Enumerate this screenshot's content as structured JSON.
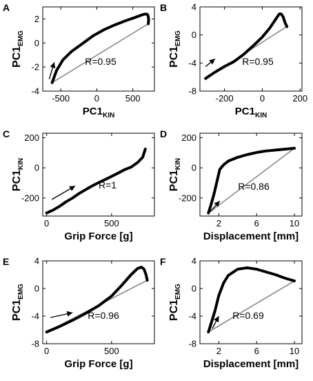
{
  "chart_data": [
    {
      "panel": "A",
      "type": "line",
      "xlabel": "PC1",
      "xlabel_sub": "KIN",
      "ylabel": "PC1",
      "ylabel_sub": "EMG",
      "xlim": [
        -750,
        800
      ],
      "ylim": [
        -4,
        3
      ],
      "xticks": [
        -500,
        0,
        500
      ],
      "xtick_labels": [
        "-500",
        "0",
        "500"
      ],
      "yticks": [
        -4,
        -2,
        0,
        2
      ],
      "ytick_labels": [
        "-4",
        "-2",
        "0",
        "2"
      ],
      "annotation": "R=0.95",
      "curve": {
        "x": [
          -620,
          -560,
          -470,
          -350,
          -200,
          -50,
          100,
          250,
          400,
          520,
          610,
          660,
          700,
          715,
          720,
          715
        ],
        "y": [
          -3.3,
          -2.3,
          -1.4,
          -0.7,
          -0.05,
          0.6,
          1.1,
          1.5,
          1.85,
          2.1,
          2.3,
          2.4,
          2.4,
          2.2,
          1.9,
          1.6
        ]
      },
      "reference_line": {
        "x": [
          -620,
          715
        ],
        "y": [
          -3.3,
          1.6
        ]
      },
      "arrow": {
        "from": [
          -660,
          -3.0
        ],
        "to": [
          -590,
          -1.6
        ]
      }
    },
    {
      "panel": "B",
      "type": "line",
      "xlabel": "PC1",
      "xlabel_sub": "KIN",
      "ylabel": "PC1",
      "ylabel_sub": "EMG",
      "xlim": [
        -330,
        210
      ],
      "ylim": [
        -8,
        4
      ],
      "xticks": [
        -200,
        0,
        200
      ],
      "xtick_labels": [
        "-200",
        "0",
        "200"
      ],
      "yticks": [
        -8,
        -4,
        0,
        4
      ],
      "ytick_labels": [
        "-8",
        "-4",
        "0",
        "4"
      ],
      "annotation": "R=0.95",
      "curve": {
        "x": [
          -300,
          -250,
          -200,
          -150,
          -100,
          -50,
          0,
          40,
          70,
          90,
          100,
          110,
          120,
          130
        ],
        "y": [
          -6.2,
          -5.3,
          -4.5,
          -3.8,
          -2.8,
          -1.6,
          -0.3,
          1.0,
          2.2,
          3.0,
          3.0,
          2.6,
          1.8,
          1.2
        ]
      },
      "reference_line": {
        "x": [
          -300,
          130
        ],
        "y": [
          -6.2,
          1.2
        ]
      },
      "arrow": {
        "from": [
          -300,
          -4.5
        ],
        "to": [
          -250,
          -3.4
        ]
      }
    },
    {
      "panel": "C",
      "type": "line",
      "xlabel": "Grip Force [g]",
      "xlabel_sub": "",
      "ylabel": "PC1",
      "ylabel_sub": "KIN",
      "xlim": [
        -30,
        830
      ],
      "ylim": [
        -320,
        230
      ],
      "xticks": [
        0,
        500
      ],
      "xtick_labels": [
        "0",
        "500"
      ],
      "yticks": [
        -200,
        0,
        200
      ],
      "ytick_labels": [
        "-200",
        "0",
        "200"
      ],
      "annotation": "R=1",
      "curve": {
        "x": [
          0,
          50,
          100,
          150,
          200,
          250,
          300,
          350,
          400,
          450,
          500,
          550,
          600,
          650,
          700,
          740,
          760
        ],
        "y": [
          -300,
          -280,
          -255,
          -225,
          -200,
          -170,
          -145,
          -120,
          -98,
          -78,
          -57,
          -35,
          -12,
          5,
          35,
          70,
          125
        ]
      },
      "reference_line": null,
      "arrow": {
        "from": [
          40,
          -210
        ],
        "to": [
          220,
          -120
        ]
      }
    },
    {
      "panel": "D",
      "type": "line",
      "xlabel": "Displacement [mm]",
      "xlabel_sub": "",
      "ylabel": "PC1",
      "ylabel_sub": "KIN",
      "xlim": [
        0,
        10.8
      ],
      "ylim": [
        -320,
        230
      ],
      "xticks": [
        2,
        6,
        10
      ],
      "xtick_labels": [
        "2",
        "6",
        "10"
      ],
      "yticks": [
        -200,
        0,
        200
      ],
      "ytick_labels": [
        "-200",
        "0",
        "200"
      ],
      "annotation": "R=0.86",
      "curve": {
        "x": [
          0.9,
          1.2,
          1.5,
          1.8,
          2.1,
          2.5,
          3.0,
          4.0,
          5.0,
          6.0,
          7.0,
          8.0,
          9.0,
          10.0
        ],
        "y": [
          -300,
          -240,
          -170,
          -90,
          -10,
          20,
          45,
          70,
          88,
          102,
          112,
          118,
          124,
          130
        ]
      },
      "reference_line": {
        "x": [
          0.9,
          10.0
        ],
        "y": [
          -300,
          130
        ]
      },
      "arrow": {
        "from": [
          1.1,
          -290
        ],
        "to": [
          2.1,
          -220
        ]
      }
    },
    {
      "panel": "E",
      "type": "line",
      "xlabel": "Grip Force [g]",
      "xlabel_sub": "",
      "ylabel": "PC1",
      "ylabel_sub": "EMG",
      "xlim": [
        -30,
        830
      ],
      "ylim": [
        -8,
        4
      ],
      "xticks": [
        0,
        500
      ],
      "xtick_labels": [
        "0",
        "500"
      ],
      "yticks": [
        -8,
        -4,
        0,
        4
      ],
      "ytick_labels": [
        "-8",
        "-4",
        "0",
        "4"
      ],
      "annotation": "R=0.96",
      "curve": {
        "x": [
          0,
          100,
          200,
          300,
          400,
          500,
          580,
          650,
          700,
          730,
          750,
          765,
          775
        ],
        "y": [
          -6.3,
          -5.5,
          -4.6,
          -3.6,
          -2.5,
          -1.1,
          0.5,
          2.0,
          2.9,
          3.1,
          2.8,
          2.0,
          1.2
        ]
      },
      "reference_line": {
        "x": [
          0,
          775
        ],
        "y": [
          -6.3,
          1.2
        ]
      },
      "arrow": {
        "from": [
          30,
          -4.2
        ],
        "to": [
          200,
          -3.5
        ]
      }
    },
    {
      "panel": "F",
      "type": "line",
      "xlabel": "Displacement [mm]",
      "xlabel_sub": "",
      "ylabel": "PC1",
      "ylabel_sub": "EMG",
      "xlim": [
        0,
        10.8
      ],
      "ylim": [
        -8,
        4
      ],
      "xticks": [
        2,
        6,
        10
      ],
      "xtick_labels": [
        "2",
        "6",
        "10"
      ],
      "yticks": [
        -8,
        -4,
        0,
        4
      ],
      "ytick_labels": [
        "-8",
        "-4",
        "0",
        "4"
      ],
      "annotation": "R=0.69",
      "curve": {
        "x": [
          0.9,
          1.2,
          1.6,
          2.0,
          2.5,
          3.0,
          4.0,
          5.0,
          6.0,
          7.0,
          8.0,
          9.0,
          10.0
        ],
        "y": [
          -6.3,
          -5.0,
          -3.2,
          -1.0,
          0.8,
          1.9,
          2.8,
          3.0,
          2.8,
          2.4,
          2.0,
          1.5,
          1.1
        ]
      },
      "reference_line": {
        "x": [
          0.9,
          10.0
        ],
        "y": [
          -6.3,
          1.1
        ]
      },
      "arrow": {
        "from": [
          1.3,
          -5.8
        ],
        "to": [
          2.0,
          -4.0
        ]
      }
    }
  ]
}
